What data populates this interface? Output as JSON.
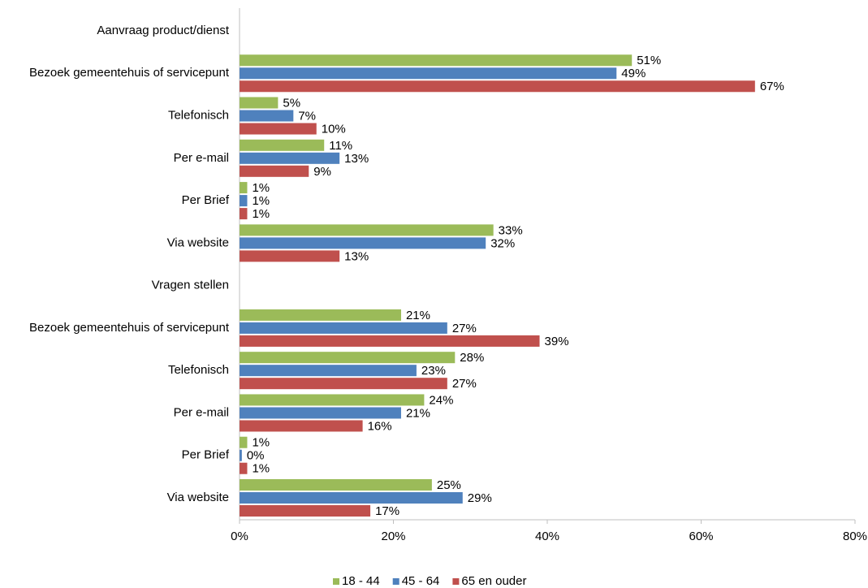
{
  "chart_data": {
    "type": "hbar",
    "categories": [
      "Aanvraag product/dienst",
      "Bezoek gemeentehuis of servicepunt",
      "Telefonisch",
      "Per e-mail",
      "Per Brief",
      "Via website",
      "Vragen stellen",
      "Bezoek gemeentehuis of servicepunt",
      "Telefonisch",
      "Per e-mail",
      "Per Brief",
      "Via website"
    ],
    "series": [
      {
        "name": "18 - 44",
        "color": "#9bbb59",
        "values": [
          null,
          51,
          5,
          11,
          1,
          33,
          null,
          21,
          28,
          24,
          1,
          25
        ],
        "value_labels": [
          null,
          "51%",
          "5%",
          "11%",
          "1%",
          "33%",
          null,
          "21%",
          "28%",
          "24%",
          "1%",
          "25%"
        ]
      },
      {
        "name": "45 - 64",
        "color": "#4f81bd",
        "values": [
          null,
          49,
          7,
          13,
          1,
          32,
          null,
          27,
          23,
          21,
          0.3,
          29
        ],
        "value_labels": [
          null,
          "49%",
          "7%",
          "13%",
          "1%",
          "32%",
          null,
          "27%",
          "23%",
          "21%",
          "0%",
          "29%"
        ]
      },
      {
        "name": "65 en ouder",
        "color": "#c0504d",
        "values": [
          null,
          67,
          10,
          9,
          1,
          13,
          null,
          39,
          27,
          16,
          1,
          17
        ],
        "value_labels": [
          null,
          "67%",
          "10%",
          "9%",
          "1%",
          "13%",
          null,
          "39%",
          "27%",
          "16%",
          "1%",
          "17%"
        ]
      }
    ],
    "xlim": [
      0,
      80
    ],
    "xticks": [
      {
        "value": 0,
        "label": "0%"
      },
      {
        "value": 20,
        "label": "20%"
      },
      {
        "value": 40,
        "label": "40%"
      },
      {
        "value": 60,
        "label": "60%"
      },
      {
        "value": 80,
        "label": "80%"
      }
    ],
    "grid": false,
    "legend": "bottom"
  }
}
